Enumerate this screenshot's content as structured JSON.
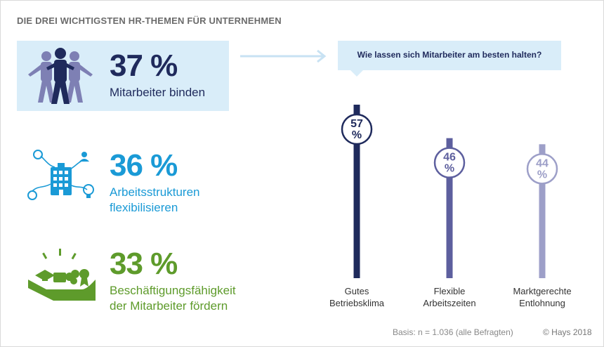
{
  "header": {
    "title": "DIE DREI WICHTIGSTEN HR-THEMEN FÜR UNTERNEHMEN"
  },
  "topics": [
    {
      "value": "37 %",
      "label_line1": "Mitarbeiter binden",
      "label_line2": "",
      "icon": "people-group-icon",
      "color": "#1f2a5c"
    },
    {
      "value": "36 %",
      "label_line1": "Arbeitsstrukturen",
      "label_line2": "flexibilisieren",
      "icon": "office-building-network-icon",
      "color": "#1a9ad6"
    },
    {
      "value": "33 %",
      "label_line1": "Beschäftigungsfähigkeit",
      "label_line2": "der Mitarbeiter fördern",
      "icon": "hand-holding-skills-icon",
      "color": "#5e9b2b"
    }
  ],
  "chart_data": {
    "type": "lollipop",
    "title": "Wie lassen sich Mitarbeiter am besten halten?",
    "categories": [
      "Gutes Betriebsklima",
      "Flexible Arbeitszeiten",
      "Marktgerechte Entlohnung"
    ],
    "category_lines": [
      [
        "Gutes",
        "Betriebsklima"
      ],
      [
        "Flexible",
        "Arbeitszeiten"
      ],
      [
        "Marktgerechte",
        "Entlohnung"
      ]
    ],
    "values": [
      57,
      46,
      44
    ],
    "value_labels": [
      [
        "57",
        "%"
      ],
      [
        "46",
        "%"
      ],
      [
        "44",
        "%"
      ]
    ],
    "colors": [
      "#1f2a5c",
      "#5d5f9e",
      "#9d9fc8"
    ],
    "ylim": [
      0,
      60
    ]
  },
  "footer": {
    "source": "Basis: n = 1.036 (alle Befragten)",
    "copyright": "© Hays 2018"
  }
}
